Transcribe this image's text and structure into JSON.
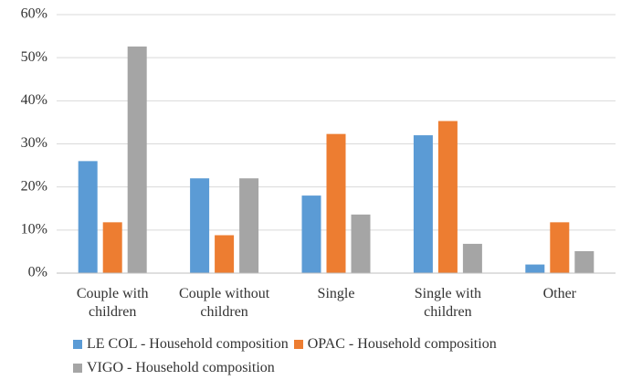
{
  "chart_data": {
    "type": "bar",
    "categories": [
      "Couple with children",
      "Couple without children",
      "Single",
      "Single with children",
      "Other"
    ],
    "series": [
      {
        "name": "LE COL - Household composition",
        "color": "#5b9bd5",
        "values": [
          26,
          22,
          18,
          32,
          2
        ]
      },
      {
        "name": "OPAC - Household composition",
        "color": "#ed7d31",
        "values": [
          11.8,
          8.8,
          32.3,
          35.3,
          11.8
        ]
      },
      {
        "name": "VIGO - Household composition",
        "color": "#a5a5a5",
        "values": [
          52.6,
          22,
          13.6,
          6.8,
          5.1
        ]
      }
    ],
    "ylim": [
      0,
      60
    ],
    "yticks": [
      {
        "value": 0,
        "label": "0%"
      },
      {
        "value": 10,
        "label": "10%"
      },
      {
        "value": 20,
        "label": "20%"
      },
      {
        "value": 30,
        "label": "30%"
      },
      {
        "value": 40,
        "label": "40%"
      },
      {
        "value": 50,
        "label": "50%"
      },
      {
        "value": 60,
        "label": "60%"
      }
    ],
    "grid": true
  }
}
